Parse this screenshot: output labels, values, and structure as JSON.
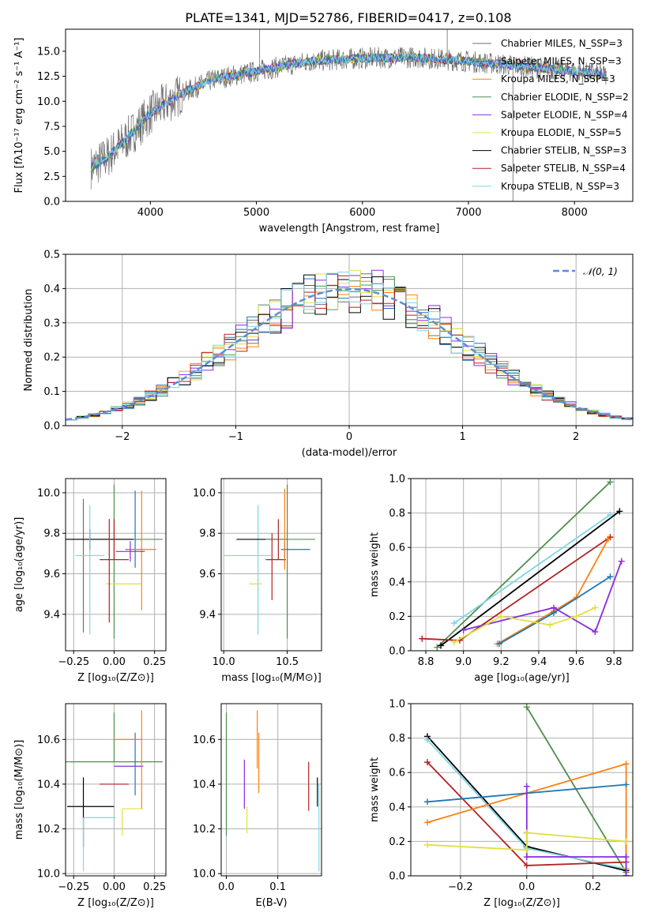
{
  "colors": {
    "cm": "#6f6f6f",
    "sm": "#1f77b4",
    "km": "#ff7f0e",
    "ce": "#4f8f4f",
    "se": "#8a2be2",
    "ke": "#e0e040",
    "cs": "#000000",
    "ss": "#b22222",
    "ks": "#7fd6e6"
  },
  "figure": {
    "title": "PLATE=1341, MJD=52786, FIBERID=0417, z=0.108"
  },
  "chart_data": [
    {
      "id": "spectrum",
      "type": "line",
      "xlabel": "wavelength [Angstrom, rest frame]",
      "ylabel": "Flux [fλ10⁻¹⁷ erg cm⁻² s⁻¹ A⁻¹]",
      "xlim": [
        3200,
        8550
      ],
      "ylim": [
        0,
        17.2
      ],
      "xticks": [
        4000,
        5000,
        6000,
        7000,
        8000
      ],
      "yticks": [
        0.0,
        2.5,
        5.0,
        7.5,
        10.0,
        12.5,
        15.0
      ],
      "legend_position": "right",
      "series": [
        {
          "name": "Chabrier MILES, N_SSP=3",
          "key": "cm"
        },
        {
          "name": "Salpeter MILES, N_SSP=3",
          "key": "sm"
        },
        {
          "name": "Kroupa MILES, N_SSP=3",
          "key": "km"
        },
        {
          "name": "Chabrier ELODIE, N_SSP=2",
          "key": "ce"
        },
        {
          "name": "Salpeter ELODIE, N_SSP=4",
          "key": "se"
        },
        {
          "name": "Kroupa ELODIE, N_SSP=5",
          "key": "ke"
        },
        {
          "name": "Chabrier STELIB, N_SSP=3",
          "key": "cs"
        },
        {
          "name": "Salpeter STELIB, N_SSP=4",
          "key": "ss"
        },
        {
          "name": "Kroupa STELIB, N_SSP=3",
          "key": "ks"
        }
      ],
      "continuum": [
        [
          3450,
          3.4
        ],
        [
          3600,
          4.5
        ],
        [
          3800,
          6.5
        ],
        [
          4000,
          8.8
        ],
        [
          4300,
          10.8
        ],
        [
          4600,
          12.2
        ],
        [
          5000,
          13.0
        ],
        [
          5500,
          14.0
        ],
        [
          6000,
          14.3
        ],
        [
          6500,
          14.4
        ],
        [
          7000,
          14.0
        ],
        [
          7500,
          13.5
        ],
        [
          8000,
          13.0
        ],
        [
          8300,
          12.6
        ]
      ],
      "spike_lines": [
        {
          "x": 5030,
          "y": 17.2
        },
        {
          "x": 6800,
          "y": 17.2
        },
        {
          "x": 7420,
          "y": 0
        }
      ]
    },
    {
      "id": "residuals",
      "type": "area",
      "xlabel": "(data-model)/error",
      "ylabel": "Normed distribution",
      "xlim": [
        -2.5,
        2.5
      ],
      "ylim": [
        0,
        0.5
      ],
      "xticks": [
        -2,
        -1,
        0,
        1,
        2
      ],
      "yticks": [
        0.0,
        0.1,
        0.2,
        0.3,
        0.4,
        0.5
      ],
      "grid": true,
      "legend": "𝒩(0, 1)",
      "legend_position": "top-right",
      "reference_curve": {
        "name": "𝒩(0, 1)",
        "mean": 0,
        "sigma": 1,
        "color": "#5b8ed6"
      },
      "bin_width": 0.1
    },
    {
      "id": "age_vs_Z",
      "type": "scatter",
      "xlabel": "Z [log₁₀(Z/Z⊙)]",
      "ylabel": "age  [log₁₀(age/yr)]",
      "xlim": [
        -0.3,
        0.32
      ],
      "ylim": [
        9.22,
        10.07
      ],
      "xticks": [
        -0.25,
        0.0,
        0.25
      ],
      "yticks": [
        9.4,
        9.6,
        9.8,
        10.0
      ],
      "grid": true,
      "points": [
        {
          "key": "cm",
          "x": -0.19,
          "y": 9.65,
          "xerr": 0.0,
          "yerr": [
            0.34,
            0.32
          ]
        },
        {
          "key": "ce",
          "x": 0.0,
          "y": 9.77,
          "xerr": 0.3,
          "yerr": [
            0.49,
            0.27
          ]
        },
        {
          "key": "cs",
          "x": -0.15,
          "y": 9.77,
          "xerr": 0.27,
          "yerr": [
            0.05,
            0.05
          ]
        },
        {
          "key": "ks",
          "x": -0.15,
          "y": 9.69,
          "xerr": 0.09,
          "yerr": [
            0.39,
            0.25
          ]
        },
        {
          "key": "sm",
          "x": 0.13,
          "y": 9.72,
          "xerr": 0.06,
          "yerr": [
            0.09,
            0.29
          ]
        },
        {
          "key": "km",
          "x": 0.17,
          "y": 9.72,
          "xerr": 0.09,
          "yerr": [
            0.3,
            0.29
          ]
        },
        {
          "key": "se",
          "x": 0.1,
          "y": 9.71,
          "xerr": 0.09,
          "yerr": [
            0.05,
            0.05
          ]
        },
        {
          "key": "ke",
          "x": 0.06,
          "y": 9.55,
          "xerr": 0.11,
          "yerr": [
            0.0,
            0.0
          ]
        },
        {
          "key": "ss",
          "x": 0.0,
          "y": 9.67,
          "xerr": 0.09,
          "yerr": [
            0.0,
            0.2
          ]
        },
        {
          "key": "ss",
          "x": -0.03,
          "y": 9.67,
          "xerr": 0.0,
          "yerr": [
            0.31,
            0.2
          ]
        }
      ]
    },
    {
      "id": "age_vs_mass",
      "type": "scatter",
      "xlabel": "mass [log₁₀(M/M⊙)]",
      "ylabel": "",
      "xlim": [
        9.98,
        10.77
      ],
      "ylim": [
        9.22,
        10.07
      ],
      "xticks": [
        10.0,
        10.5
      ],
      "yticks": [
        9.4,
        9.6,
        9.8,
        10.0
      ],
      "grid": true,
      "points": [
        {
          "key": "ks",
          "x": 10.27,
          "y": 9.69,
          "xerr": [
            0.27,
            0.1
          ],
          "yerr": [
            0.39,
            0.25
          ]
        },
        {
          "key": "cs",
          "x": 10.3,
          "y": 9.77,
          "xerr": [
            0.2,
            0.2
          ],
          "yerr": [
            0.0,
            0.0
          ]
        },
        {
          "key": "ke",
          "x": 10.3,
          "y": 9.55,
          "xerr": [
            0.1,
            0.0
          ],
          "yerr": [
            0.0,
            0.0
          ]
        },
        {
          "key": "ce",
          "x": 10.5,
          "y": 9.77,
          "xerr": [
            0.17,
            0.22
          ],
          "yerr": [
            0.49,
            0.27
          ]
        },
        {
          "key": "ss",
          "x": 10.43,
          "y": 9.67,
          "xerr": [
            0.1,
            0.06
          ],
          "yerr": [
            0.0,
            0.2
          ]
        },
        {
          "key": "se",
          "x": 10.48,
          "y": 9.71,
          "xerr": [
            0.0,
            0.0
          ],
          "yerr": [
            0.05,
            0.05
          ]
        },
        {
          "key": "sm",
          "x": 10.55,
          "y": 9.72,
          "xerr": [
            0.1,
            0.13
          ],
          "yerr": [
            0.0,
            0.0
          ]
        },
        {
          "key": "km",
          "x": 10.48,
          "y": 9.72,
          "xerr": [
            0.0,
            0.0
          ],
          "yerr": [
            0.1,
            0.3
          ]
        },
        {
          "key": "ss",
          "x": 10.38,
          "y": 9.67,
          "xerr": [
            0.0,
            0.0
          ],
          "yerr": [
            0.2,
            0.13
          ]
        }
      ]
    },
    {
      "id": "weight_vs_age",
      "type": "line",
      "xlabel": "age  [log₁₀(age/yr)]",
      "ylabel": "mass weight",
      "xlim": [
        8.72,
        9.9
      ],
      "ylim": [
        0.0,
        1.0
      ],
      "xticks": [
        8.8,
        9.0,
        9.2,
        9.4,
        9.6,
        9.8
      ],
      "yticks": [
        0.0,
        0.2,
        0.4,
        0.6,
        0.8,
        1.0
      ],
      "grid": true,
      "series": [
        {
          "key": "ce",
          "x": [
            8.86,
            9.78
          ],
          "y": [
            0.02,
            0.98
          ]
        },
        {
          "key": "cs",
          "x": [
            8.88,
            9.83
          ],
          "y": [
            0.03,
            0.81
          ]
        },
        {
          "key": "ks",
          "x": [
            8.95,
            9.78
          ],
          "y": [
            0.16,
            0.79
          ]
        },
        {
          "key": "ss",
          "x": [
            8.78,
            8.98,
            9.78
          ],
          "y": [
            0.07,
            0.06,
            0.66
          ]
        },
        {
          "key": "km",
          "x": [
            9.18,
            9.48,
            9.6,
            9.77
          ],
          "y": [
            0.04,
            0.23,
            0.31,
            0.65
          ]
        },
        {
          "key": "sm",
          "x": [
            9.19,
            9.48,
            9.78
          ],
          "y": [
            0.04,
            0.22,
            0.43
          ]
        },
        {
          "key": "se",
          "x": [
            9.0,
            9.48,
            9.7,
            9.84
          ],
          "y": [
            0.12,
            0.25,
            0.11,
            0.52
          ]
        },
        {
          "key": "ke",
          "x": [
            8.95,
            9.2,
            9.46,
            9.6,
            9.7
          ],
          "y": [
            0.05,
            0.2,
            0.15,
            0.2,
            0.25
          ]
        }
      ]
    },
    {
      "id": "mass_vs_Z",
      "type": "scatter",
      "xlabel": "Z [log₁₀(Z/Z⊙)]",
      "ylabel": "mass [log₁₀(M/M⊙)]",
      "xlim": [
        -0.3,
        0.32
      ],
      "ylim": [
        9.99,
        10.76
      ],
      "xticks": [
        -0.25,
        0.0,
        0.25
      ],
      "yticks": [
        10.0,
        10.2,
        10.4,
        10.6
      ],
      "grid": true,
      "points": [
        {
          "key": "ce",
          "x": 0.0,
          "y": 10.5,
          "xerr": 0.3,
          "yerr": [
            0.0,
            0.22
          ]
        },
        {
          "key": "cs",
          "x": -0.19,
          "y": 10.3,
          "xerr": [
            0.1,
            0.19
          ],
          "yerr": [
            0.18,
            0.13
          ]
        },
        {
          "key": "ks",
          "x": -0.19,
          "y": 10.25,
          "xerr": [
            0.0,
            0.2
          ],
          "yerr": [
            0.24,
            0.0
          ]
        },
        {
          "key": "ss",
          "x": 0.0,
          "y": 10.4,
          "xerr": [
            0.09,
            0.09
          ],
          "yerr": [
            0.0,
            0.0
          ]
        },
        {
          "key": "se",
          "x": 0.07,
          "y": 10.48,
          "xerr": [
            0.07,
            0.11
          ],
          "yerr": [
            0.0,
            0.0
          ]
        },
        {
          "key": "sm",
          "x": 0.13,
          "y": 10.49,
          "xerr": [
            0.0,
            0.0
          ],
          "yerr": [
            0.14,
            0.14
          ]
        },
        {
          "key": "km",
          "x": 0.17,
          "y": 10.6,
          "xerr": [
            0.17,
            0.0
          ],
          "yerr": [
            0.31,
            0.13
          ]
        },
        {
          "key": "ke",
          "x": 0.05,
          "y": 10.29,
          "xerr": [
            0.0,
            0.13
          ],
          "yerr": [
            0.12,
            0.0
          ]
        }
      ]
    },
    {
      "id": "mass_vs_EBV",
      "type": "scatter",
      "xlabel": "E(B-V)",
      "ylabel": "",
      "xlim": [
        -0.01,
        0.185
      ],
      "ylim": [
        9.99,
        10.76
      ],
      "xticks": [
        0.0,
        0.1
      ],
      "yticks": [
        10.0,
        10.2,
        10.4,
        10.6
      ],
      "grid": true,
      "points": [
        {
          "key": "ce",
          "x": 0.0,
          "y": 10.5,
          "yerr": [
            0.33,
            0.22
          ]
        },
        {
          "key": "se",
          "x": 0.035,
          "y": 10.4,
          "yerr": [
            0.11,
            0.11
          ]
        },
        {
          "key": "ke",
          "x": 0.04,
          "y": 10.3,
          "yerr": [
            0.12,
            0.0
          ]
        },
        {
          "key": "km",
          "x": 0.06,
          "y": 10.6,
          "yerr": [
            0.13,
            0.13
          ]
        },
        {
          "key": "km",
          "x": 0.063,
          "y": 10.45,
          "yerr": [
            0.09,
            0.18
          ]
        },
        {
          "key": "ss",
          "x": 0.16,
          "y": 10.4,
          "yerr": [
            0.12,
            0.1
          ]
        },
        {
          "key": "cs",
          "x": 0.177,
          "y": 10.3,
          "yerr": [
            0.0,
            0.13
          ]
        },
        {
          "key": "ks",
          "x": 0.18,
          "y": 10.25,
          "yerr": [
            0.24,
            0.15
          ]
        }
      ]
    },
    {
      "id": "weight_vs_Z",
      "type": "line",
      "xlabel": "Z [log₁₀(Z/Z⊙)]",
      "ylabel": "mass weight",
      "xlim": [
        -0.35,
        0.32
      ],
      "ylim": [
        0.0,
        1.0
      ],
      "xticks": [
        -0.2,
        0.0,
        0.2
      ],
      "yticks": [
        0.0,
        0.2,
        0.4,
        0.6,
        0.8,
        1.0
      ],
      "grid": true,
      "series": [
        {
          "key": "ce",
          "x": [
            0.0,
            0.3
          ],
          "y": [
            0.98,
            0.02
          ]
        },
        {
          "key": "cs",
          "x": [
            -0.3,
            0.0,
            0.3
          ],
          "y": [
            0.81,
            0.17,
            0.03
          ]
        },
        {
          "key": "ks",
          "x": [
            -0.3,
            0.0,
            0.3
          ],
          "y": [
            0.79,
            0.16,
            0.04
          ]
        },
        {
          "key": "ss",
          "x": [
            -0.3,
            0.0,
            0.3,
            0.3,
            0.3
          ],
          "y": [
            0.66,
            0.06,
            0.08,
            0.2,
            0.0
          ]
        },
        {
          "key": "km",
          "x": [
            -0.3,
            0.3,
            0.3
          ],
          "y": [
            0.31,
            0.65,
            0.04
          ]
        },
        {
          "key": "sm",
          "x": [
            -0.3,
            0.3
          ],
          "y": [
            0.43,
            0.53
          ]
        },
        {
          "key": "se",
          "x": [
            0.0,
            0.0,
            0.0,
            0.3,
            0.3
          ],
          "y": [
            0.52,
            0.25,
            0.11,
            0.11,
            0.0
          ]
        },
        {
          "key": "ke",
          "x": [
            -0.3,
            0.0,
            0.0,
            0.3
          ],
          "y": [
            0.18,
            0.15,
            0.25,
            0.2
          ]
        }
      ]
    }
  ]
}
